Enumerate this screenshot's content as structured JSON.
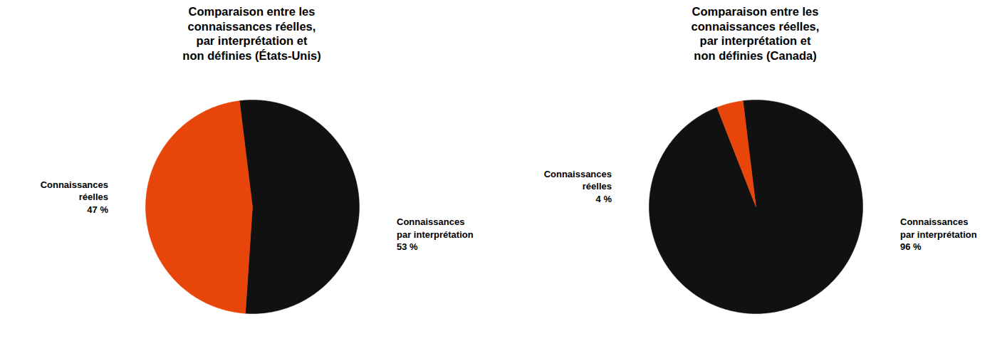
{
  "chart_data": [
    {
      "type": "pie",
      "title": "Comparaison entre les\nconnaissances réelles,\npar interprétation et\nnon définies (États-Unis)",
      "categories": [
        "Connaissances\npar interprétation",
        "Connaissances\nréelles"
      ],
      "values": [
        53,
        47
      ],
      "value_labels": [
        "53 %",
        "47 %"
      ],
      "colors": [
        "#111111",
        "#e8450a"
      ],
      "data_labels": true
    },
    {
      "type": "pie",
      "title": "Comparaison entre les\nconnaissances réelles,\npar interprétation et\nnon définies (Canada)",
      "categories": [
        "Connaissances\npar interprétation",
        "Connaissances\nréelles"
      ],
      "values": [
        96,
        4
      ],
      "value_labels": [
        "96 %",
        "4 %"
      ],
      "colors": [
        "#111111",
        "#e8450a"
      ],
      "data_labels": true
    }
  ]
}
